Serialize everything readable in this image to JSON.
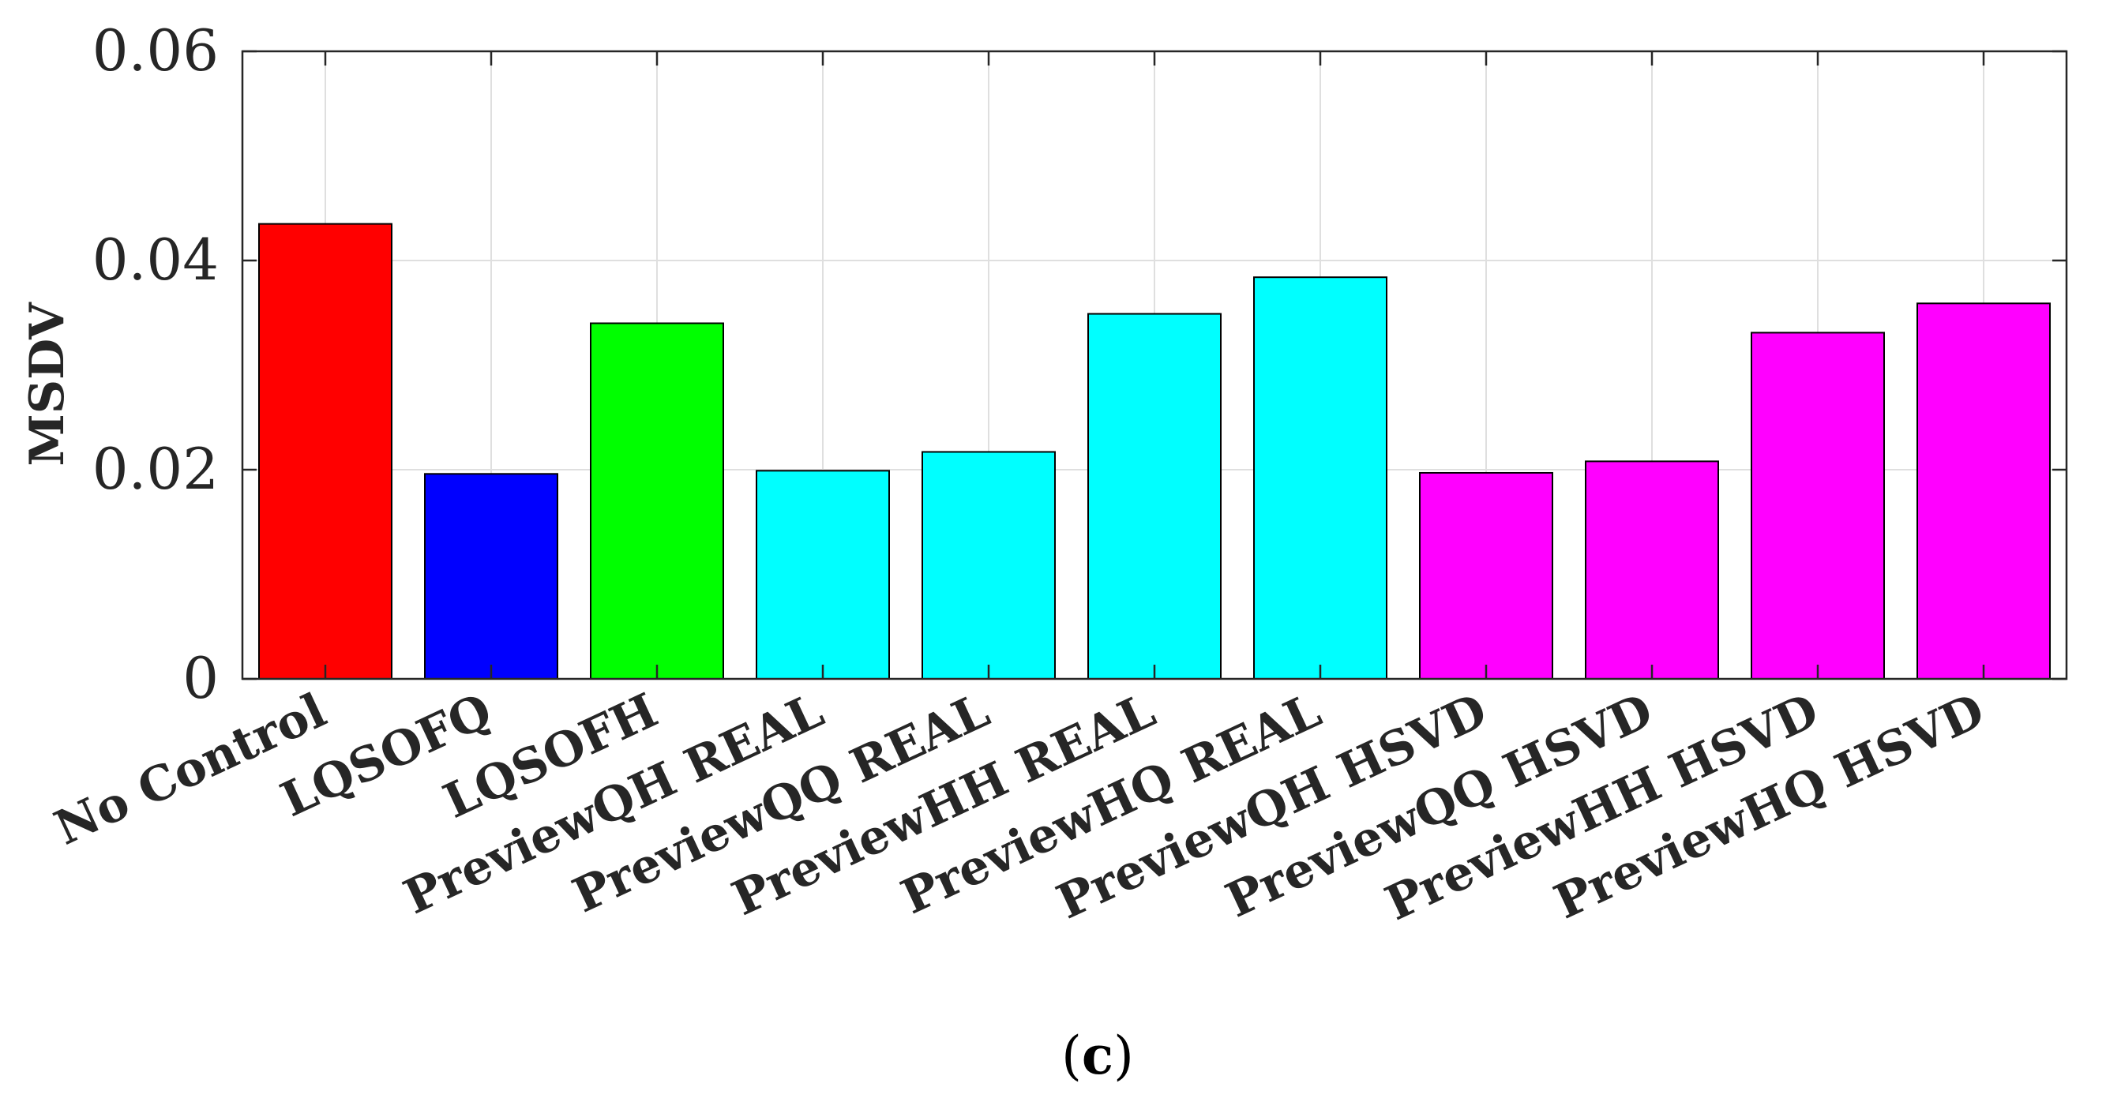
{
  "chart_data": {
    "type": "bar",
    "title": "",
    "xlabel": "",
    "ylabel": "MSDV",
    "ylim": [
      0,
      0.06
    ],
    "yticks": [
      0,
      0.02,
      0.04,
      0.06
    ],
    "ytick_labels": [
      "0",
      "0.02",
      "0.04",
      "0.06"
    ],
    "grid": true,
    "categories": [
      "No Control",
      "LQSOFQ",
      "LQSOFH",
      "PreviewQH REAL",
      "PreviewQQ REAL",
      "PreviewHH REAL",
      "PreviewHQ REAL",
      "PreviewQH HSVD",
      "PreviewQQ HSVD",
      "PreviewHH HSVD",
      "PreviewHQ HSVD"
    ],
    "values": [
      0.0435,
      0.0196,
      0.034,
      0.0199,
      0.0217,
      0.0349,
      0.0384,
      0.0197,
      0.0208,
      0.0331,
      0.0359
    ],
    "colors": [
      "#ff0000",
      "#0000ff",
      "#00ff00",
      "#00ffff",
      "#00ffff",
      "#00ffff",
      "#00ffff",
      "#ff00ff",
      "#ff00ff",
      "#ff00ff",
      "#ff00ff"
    ]
  },
  "panel_label": {
    "open": "(",
    "letter": "c",
    "close": ")"
  }
}
